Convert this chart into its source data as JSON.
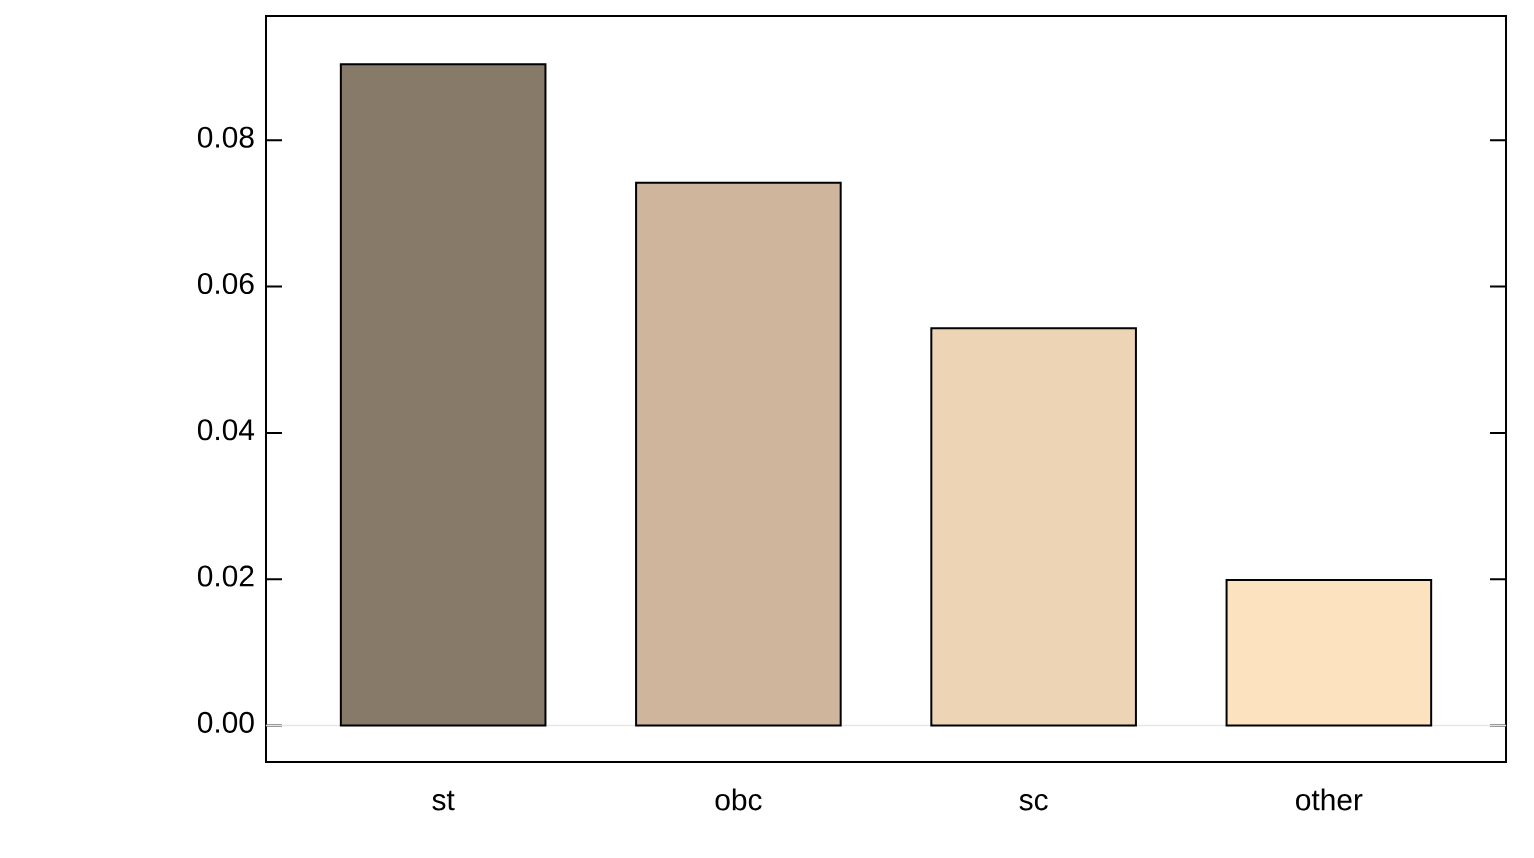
{
  "chart_data": {
    "type": "bar",
    "categories": [
      "st",
      "obc",
      "sc",
      "other"
    ],
    "values": [
      0.0904,
      0.0742,
      0.0543,
      0.0199
    ],
    "colors": [
      "#887a68",
      "#ceb59c",
      "#edd4b4",
      "#fde2c0"
    ],
    "ylim": [
      -0.005,
      0.097
    ],
    "yticks": [
      {
        "value": 0,
        "label": "0.00"
      },
      {
        "value": 0.02,
        "label": "0.02"
      },
      {
        "value": 0.04,
        "label": "0.04"
      },
      {
        "value": 0.06,
        "label": "0.06"
      },
      {
        "value": 0.08,
        "label": "0.08"
      }
    ],
    "ref_lines": [
      {
        "axis": "y",
        "value": 0,
        "color": "#e6e6e6"
      }
    ],
    "grid": false
  }
}
